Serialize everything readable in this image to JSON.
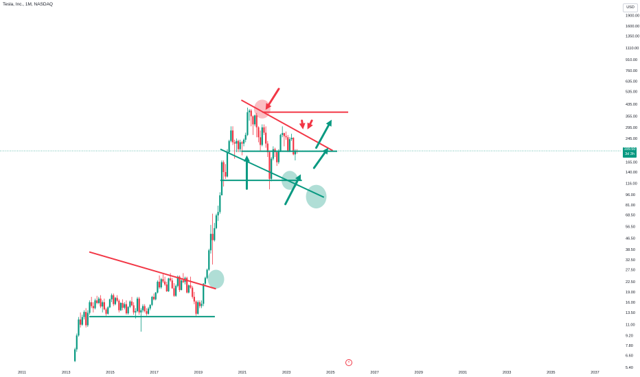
{
  "header": {
    "symbol_title": "Tesla, Inc., 1M, NASDAQ",
    "currency": "USD"
  },
  "price_badge": {
    "price": "199.50",
    "countdown": "3d 3h",
    "color": "#089981"
  },
  "event_icon": "lightning-icon",
  "chart_data": {
    "type": "candlestick",
    "y_scale": "log",
    "ylim": [
      5.4,
      2300
    ],
    "xlim": [
      2010.0,
      2038.2
    ],
    "y_ticks": [
      "1900.00",
      "1600.00",
      "1350.00",
      "1110.00",
      "910.00",
      "760.00",
      "635.00",
      "535.00",
      "435.00",
      "355.00",
      "295.00",
      "245.00",
      "199.50",
      "165.00",
      "140.00",
      "116.00",
      "96.00",
      "81.00",
      "68.50",
      "56.50",
      "46.50",
      "38.50",
      "32.50",
      "27.50",
      "22.50",
      "19.00",
      "16.00",
      "13.50",
      "11.00",
      "9.20",
      "7.80",
      "6.60",
      "5.40"
    ],
    "x_ticks": [
      "2011",
      "2013",
      "2015",
      "2017",
      "2019",
      "2021",
      "2023",
      "2025",
      "2027",
      "2029",
      "2031",
      "2033",
      "2035",
      "2037"
    ],
    "grid": false,
    "colors": {
      "up": "#089981",
      "down": "#f23645",
      "trendline_red": "#f23645",
      "trendline_green": "#089981",
      "price_line": "#089981"
    },
    "current_price": 199.5,
    "candles_start": 2013.4,
    "candles_step_years": 0.0833,
    "candles": [
      [
        6.0,
        7.5,
        5.9,
        7.3
      ],
      [
        7.3,
        9.5,
        7.0,
        9.2
      ],
      [
        9.2,
        12.5,
        9.0,
        12.0
      ],
      [
        12.0,
        13.5,
        10.5,
        11.0
      ],
      [
        11.0,
        13.0,
        10.8,
        12.5
      ],
      [
        12.5,
        14.0,
        12.0,
        13.6
      ],
      [
        13.6,
        14.5,
        10.5,
        10.9
      ],
      [
        10.9,
        14.0,
        10.6,
        13.4
      ],
      [
        13.4,
        16.5,
        13.0,
        16.0
      ],
      [
        16.0,
        17.5,
        14.5,
        15.0
      ],
      [
        15.0,
        16.0,
        13.5,
        14.5
      ],
      [
        14.5,
        17.0,
        14.2,
        16.5
      ],
      [
        16.5,
        17.8,
        15.5,
        15.8
      ],
      [
        15.8,
        17.5,
        15.5,
        17.0
      ],
      [
        17.0,
        18.0,
        14.5,
        14.9
      ],
      [
        14.9,
        16.5,
        13.5,
        16.0
      ],
      [
        16.0,
        17.0,
        14.0,
        14.2
      ],
      [
        14.2,
        14.6,
        12.8,
        13.2
      ],
      [
        13.2,
        15.0,
        13.0,
        14.7
      ],
      [
        14.7,
        17.0,
        14.5,
        16.8
      ],
      [
        16.8,
        18.5,
        16.0,
        18.0
      ],
      [
        18.0,
        18.5,
        15.0,
        15.5
      ],
      [
        15.5,
        17.5,
        15.2,
        17.2
      ],
      [
        17.2,
        18.0,
        16.0,
        16.4
      ],
      [
        16.4,
        16.8,
        13.5,
        14.0
      ],
      [
        14.0,
        16.0,
        13.8,
        15.8
      ],
      [
        15.8,
        16.8,
        14.0,
        14.6
      ],
      [
        14.6,
        16.0,
        14.2,
        15.5
      ],
      [
        15.5,
        16.5,
        13.0,
        13.3
      ],
      [
        13.3,
        15.0,
        13.0,
        14.8
      ],
      [
        14.8,
        16.5,
        14.5,
        16.2
      ],
      [
        16.2,
        17.5,
        15.0,
        15.2
      ],
      [
        15.2,
        16.0,
        13.0,
        13.5
      ],
      [
        13.5,
        14.5,
        12.2,
        13.8
      ],
      [
        13.8,
        17.5,
        13.5,
        17.0
      ],
      [
        17.0,
        17.5,
        13.0,
        13.5
      ],
      [
        13.5,
        14.5,
        9.8,
        14.0
      ],
      [
        14.0,
        15.5,
        13.5,
        15.0
      ],
      [
        15.0,
        15.5,
        13.5,
        13.8
      ],
      [
        13.8,
        14.5,
        12.8,
        13.2
      ],
      [
        13.2,
        14.8,
        13.0,
        14.4
      ],
      [
        14.4,
        15.5,
        14.0,
        15.3
      ],
      [
        15.3,
        17.8,
        15.0,
        17.5
      ],
      [
        17.5,
        18.5,
        16.5,
        16.8
      ],
      [
        16.8,
        19.0,
        16.5,
        18.8
      ],
      [
        18.8,
        23.0,
        18.5,
        22.5
      ],
      [
        22.5,
        25.0,
        20.0,
        20.5
      ],
      [
        20.5,
        24.0,
        20.0,
        23.5
      ],
      [
        23.5,
        25.5,
        22.0,
        22.6
      ],
      [
        22.6,
        24.5,
        21.0,
        21.5
      ],
      [
        21.5,
        22.5,
        19.0,
        19.2
      ],
      [
        19.2,
        24.0,
        19.0,
        23.8
      ],
      [
        23.8,
        26.0,
        22.5,
        23.0
      ],
      [
        23.0,
        24.0,
        20.0,
        20.2
      ],
      [
        20.2,
        22.0,
        17.5,
        17.8
      ],
      [
        17.8,
        21.5,
        17.5,
        21.0
      ],
      [
        21.0,
        25.0,
        20.5,
        24.5
      ],
      [
        24.5,
        25.0,
        19.0,
        19.6
      ],
      [
        19.6,
        24.0,
        19.5,
        23.0
      ],
      [
        23.0,
        26.0,
        22.0,
        22.4
      ],
      [
        22.4,
        24.5,
        21.5,
        24.0
      ],
      [
        24.0,
        24.5,
        18.5,
        18.8
      ],
      [
        18.8,
        21.5,
        18.5,
        21.2
      ],
      [
        21.2,
        24.5,
        20.0,
        20.4
      ],
      [
        20.4,
        21.0,
        17.0,
        17.5
      ],
      [
        17.5,
        19.0,
        15.5,
        16.2
      ],
      [
        16.2,
        16.5,
        12.8,
        13.2
      ],
      [
        13.2,
        16.5,
        13.0,
        16.0
      ],
      [
        16.0,
        16.5,
        14.5,
        15.0
      ],
      [
        15.0,
        16.5,
        14.5,
        15.6
      ],
      [
        15.6,
        22.0,
        15.0,
        21.8
      ],
      [
        21.8,
        24.5,
        21.0,
        24.0
      ],
      [
        24.0,
        28.0,
        23.5,
        27.5
      ],
      [
        27.5,
        39.0,
        27.0,
        38.0
      ],
      [
        38.0,
        58.0,
        36.0,
        50.0
      ],
      [
        50.0,
        70.0,
        30.0,
        45.0
      ],
      [
        45.0,
        60.0,
        44.0,
        55.0
      ],
      [
        55.0,
        70.0,
        54.0,
        68.0
      ],
      [
        68.0,
        80.0,
        62.0,
        72.0
      ],
      [
        72.0,
        100.0,
        70.0,
        95.0
      ],
      [
        95.0,
        170.0,
        95.0,
        165.0
      ],
      [
        165.0,
        170.0,
        110.0,
        140.0
      ],
      [
        140.0,
        160.0,
        125.0,
        130.0
      ],
      [
        130.0,
        205.0,
        128.0,
        195.0
      ],
      [
        195.0,
        240.0,
        190.0,
        235.0
      ],
      [
        235.0,
        300.0,
        230.0,
        280.0
      ],
      [
        280.0,
        300.0,
        220.0,
        230.0
      ],
      [
        230.0,
        240.0,
        175.0,
        225.0
      ],
      [
        225.0,
        245.0,
        195.0,
        235.0
      ],
      [
        235.0,
        240.0,
        195.0,
        205.0
      ],
      [
        205.0,
        240.0,
        195.0,
        230.0
      ],
      [
        230.0,
        235.0,
        185.0,
        225.0
      ],
      [
        225.0,
        245.0,
        215.0,
        240.0
      ],
      [
        240.0,
        270.0,
        230.0,
        260.0
      ],
      [
        260.0,
        410.0,
        255.0,
        380.0
      ],
      [
        380.0,
        400.0,
        330.0,
        390.0
      ],
      [
        390.0,
        400.0,
        300.0,
        355.0
      ],
      [
        355.0,
        360.0,
        260.0,
        310.0
      ],
      [
        310.0,
        365.0,
        300.0,
        360.0
      ],
      [
        360.0,
        375.0,
        250.0,
        295.0
      ],
      [
        295.0,
        300.0,
        230.0,
        250.0
      ],
      [
        250.0,
        280.0,
        200.0,
        220.0
      ],
      [
        220.0,
        310.0,
        215.0,
        295.0
      ],
      [
        295.0,
        310.0,
        260.0,
        270.0
      ],
      [
        270.0,
        300.0,
        210.0,
        225.0
      ],
      [
        225.0,
        235.0,
        180.0,
        195.0
      ],
      [
        195.0,
        200.0,
        105.0,
        125.0
      ],
      [
        125.0,
        180.0,
        120.0,
        175.0
      ],
      [
        175.0,
        215.0,
        170.0,
        205.0
      ],
      [
        205.0,
        210.0,
        180.0,
        195.0
      ],
      [
        195.0,
        200.0,
        155.0,
        165.0
      ],
      [
        165.0,
        205.0,
        160.0,
        200.0
      ],
      [
        200.0,
        265.0,
        195.0,
        260.0
      ],
      [
        260.0,
        300.0,
        250.0,
        268.0
      ],
      [
        268.0,
        270.0,
        215.0,
        255.0
      ],
      [
        255.0,
        275.0,
        240.0,
        250.0
      ],
      [
        250.0,
        260.0,
        195.0,
        200.0
      ],
      [
        200.0,
        250.0,
        195.0,
        242.0
      ],
      [
        242.0,
        265.0,
        235.0,
        248.0
      ],
      [
        248.0,
        250.0,
        185.0,
        188.0
      ],
      [
        188.0,
        205.0,
        170.0,
        200.0
      ],
      [
        200.0,
        205.0,
        190.0,
        199.5
      ]
    ],
    "annotations": {
      "lines": [
        {
          "color": "red",
          "points": [
            [
              2014.05,
              37.0
            ],
            [
              2019.8,
              20.0
            ]
          ]
        },
        {
          "color": "green",
          "points": [
            [
              2014.05,
              12.6
            ],
            [
              2019.75,
              12.6
            ]
          ]
        },
        {
          "color": "red",
          "points": [
            [
              2020.95,
              465.0
            ],
            [
              2025.1,
              200.0
            ]
          ]
        },
        {
          "color": "red",
          "points": [
            [
              2021.9,
              380.0
            ],
            [
              2025.8,
              380.0
            ]
          ]
        },
        {
          "color": "green",
          "points": [
            [
              2020.95,
              198.0
            ],
            [
              2025.3,
              198.0
            ]
          ]
        },
        {
          "color": "green",
          "points": [
            [
              2020.0,
              205.0
            ],
            [
              2024.7,
              92.0
            ]
          ]
        },
        {
          "color": "green",
          "points": [
            [
              2020.0,
              122.0
            ],
            [
              2023.7,
              122.0
            ]
          ]
        }
      ],
      "circles": [
        {
          "color": "red",
          "center": [
            2021.9,
            400.0
          ],
          "radius": 12
        },
        {
          "color": "green",
          "center": [
            2019.8,
            23.5
          ],
          "radius": 12
        },
        {
          "color": "green",
          "center": [
            2023.15,
            122.0
          ],
          "radius": 12
        },
        {
          "color": "green",
          "center": [
            2024.35,
            93.0
          ],
          "radius": 15
        }
      ],
      "arrows": [
        {
          "color": "red",
          "from": [
            2022.65,
            560.0
          ],
          "to": [
            2022.05,
            395.0
          ]
        },
        {
          "color": "red",
          "from": [
            2023.7,
            330.0
          ],
          "to": [
            2023.75,
            285.0
          ]
        },
        {
          "color": "red",
          "from": [
            2024.15,
            330.0
          ],
          "to": [
            2023.95,
            285.0
          ]
        },
        {
          "color": "green",
          "from": [
            2021.2,
            106.0
          ],
          "to": [
            2021.2,
            185.0
          ]
        },
        {
          "color": "green",
          "from": [
            2022.95,
            82.0
          ],
          "to": [
            2023.65,
            135.0
          ]
        },
        {
          "color": "green",
          "from": [
            2024.35,
            210.0
          ],
          "to": [
            2025.05,
            335.0
          ]
        },
        {
          "color": "green",
          "from": [
            2024.25,
            150.0
          ],
          "to": [
            2024.9,
            210.0
          ]
        }
      ]
    }
  }
}
